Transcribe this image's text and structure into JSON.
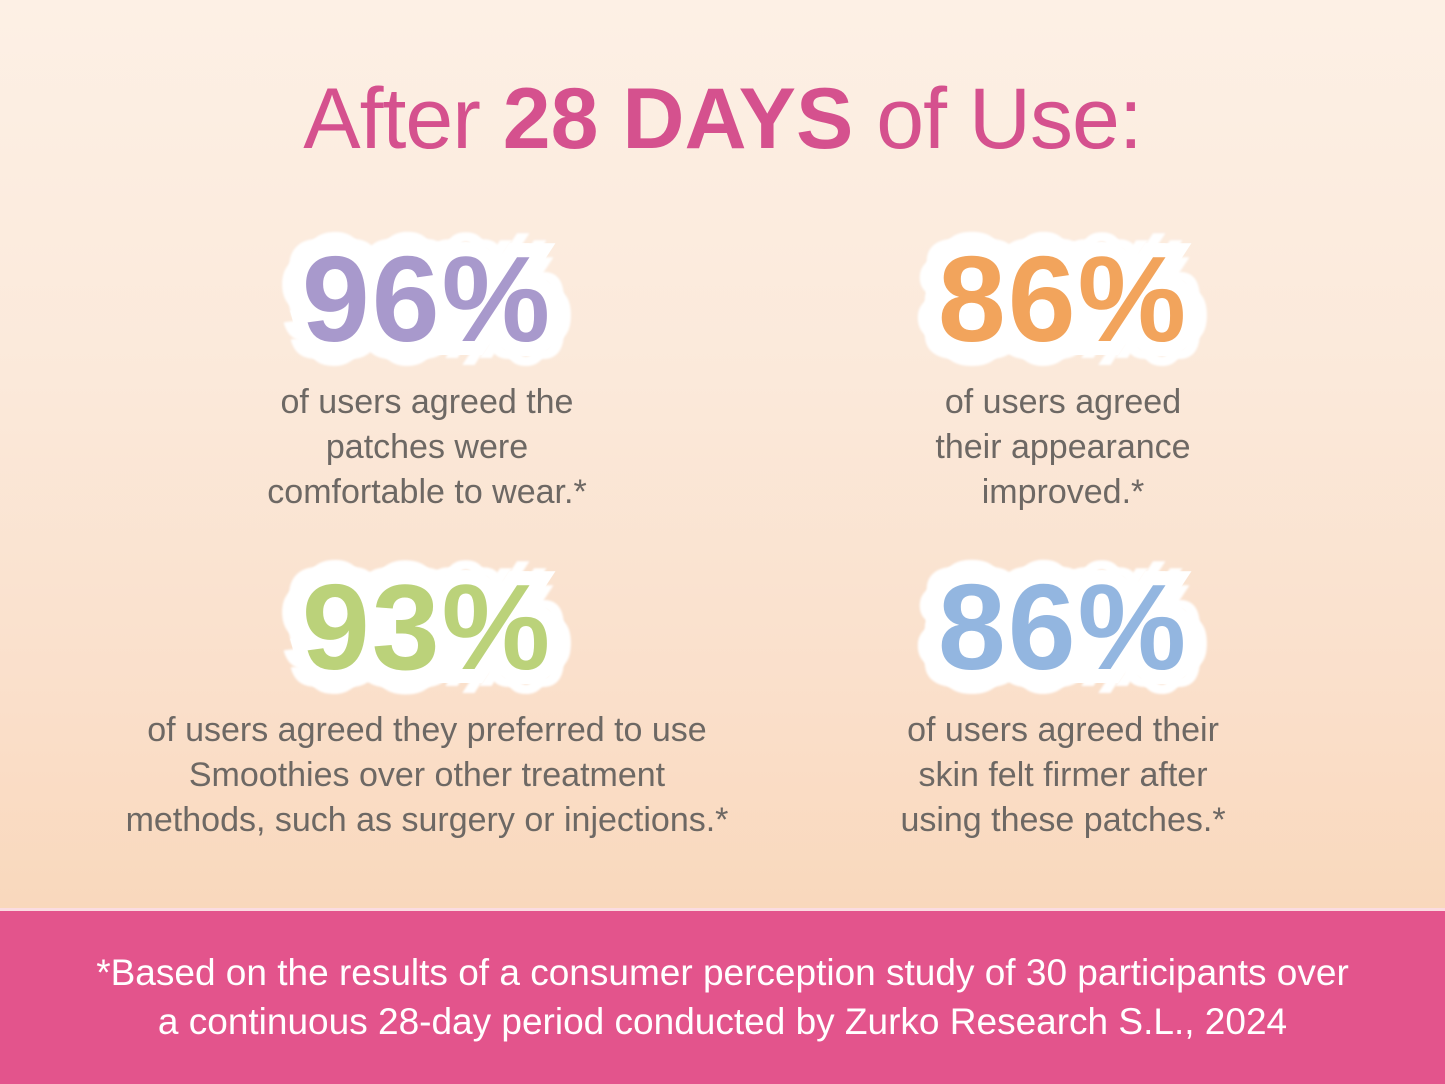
{
  "title": {
    "prefix": "After ",
    "emphasis": "28 DAYS",
    "suffix": " of Use:"
  },
  "stats": [
    {
      "value": "96%",
      "color": "#a899cc",
      "caption_lines": [
        "of users agreed the",
        "patches were",
        "comfortable to wear.*"
      ]
    },
    {
      "value": "86%",
      "color": "#f2a45c",
      "caption_lines": [
        "of users agreed",
        "their appearance",
        "improved.*"
      ]
    },
    {
      "value": "93%",
      "color": "#bbd27a",
      "caption_lines": [
        "of users agreed they preferred to use",
        "Smoothies over other treatment",
        "methods, such as surgery or injections.*"
      ]
    },
    {
      "value": "86%",
      "color": "#93b6e0",
      "caption_lines": [
        "of users agreed their",
        "skin felt firmer after",
        "using these patches.*"
      ]
    }
  ],
  "footer": {
    "lines": [
      "*Based on the results of a consumer perception study of 30 participants over",
      "a continuous 28-day period conducted by Zurko Research S.L., 2024"
    ]
  },
  "colors": {
    "title_pink": "#d5518e",
    "footer_pink": "#e3548c",
    "caption_gray": "#6d6864",
    "stat_outline": "#ffffff",
    "background_top": "#fdf0e5",
    "background_bottom": "#f9d8bc"
  },
  "chart_data": {
    "type": "table",
    "title": "After 28 DAYS of Use:",
    "categories": [
      "agreed the patches were comfortable to wear",
      "agreed their appearance improved",
      "agreed they preferred to use Smoothies over other treatment methods, such as surgery or injections",
      "agreed their skin felt firmer after using these patches"
    ],
    "values": [
      96,
      86,
      93,
      86
    ],
    "unit": "% of users",
    "source_note": "*Based on the results of a consumer perception study of 30 participants over a continuous 28-day period conducted by Zurko Research S.L., 2024"
  }
}
